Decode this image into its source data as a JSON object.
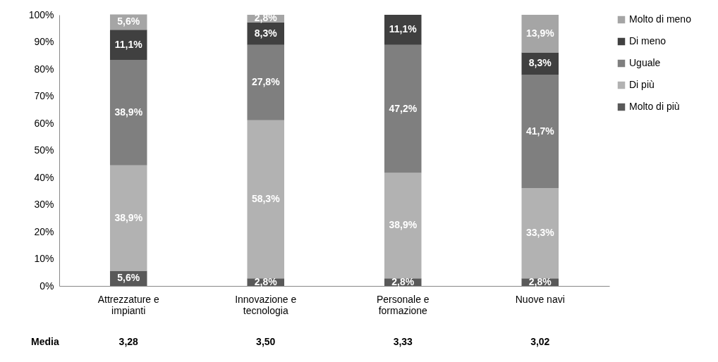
{
  "chart_data": {
    "type": "bar",
    "stacked": true,
    "categories": [
      "Attrezzature e impianti",
      "Innovazione e tecnologia",
      "Personale e formazione",
      "Nuove navi"
    ],
    "series": [
      {
        "name": "Molto di più",
        "color": "#595959",
        "values": [
          5.6,
          2.8,
          2.8,
          2.8
        ],
        "value_labels": [
          "5,6%",
          "2,8%",
          "2,8%",
          "2,8%"
        ]
      },
      {
        "name": "Di più",
        "color": "#b2b2b2",
        "values": [
          38.9,
          58.3,
          38.9,
          33.3
        ],
        "value_labels": [
          "38,9%",
          "58,3%",
          "38,9%",
          "33,3%"
        ]
      },
      {
        "name": "Uguale",
        "color": "#7f7f7f",
        "values": [
          38.9,
          27.8,
          47.2,
          41.7
        ],
        "value_labels": [
          "38,9%",
          "27,8%",
          "47,2%",
          "41,7%"
        ]
      },
      {
        "name": "Di meno",
        "color": "#404040",
        "values": [
          11.1,
          8.3,
          11.1,
          8.3
        ],
        "value_labels": [
          "11,1%",
          "8,3%",
          "11,1%",
          "8,3%"
        ]
      },
      {
        "name": "Molto di meno",
        "color": "#a5a5a5",
        "values": [
          5.6,
          2.8,
          null,
          13.9
        ],
        "value_labels": [
          "5,6%",
          "2,8%",
          null,
          "13,9%"
        ]
      }
    ],
    "ylim": [
      0,
      100
    ],
    "yticks": [
      {
        "value": 0,
        "label": "0%"
      },
      {
        "value": 10,
        "label": "10%"
      },
      {
        "value": 20,
        "label": "20%"
      },
      {
        "value": 30,
        "label": "30%"
      },
      {
        "value": 40,
        "label": "40%"
      },
      {
        "value": 50,
        "label": "50%"
      },
      {
        "value": 60,
        "label": "60%"
      },
      {
        "value": 70,
        "label": "70%"
      },
      {
        "value": 80,
        "label": "80%"
      },
      {
        "value": 90,
        "label": "90%"
      },
      {
        "value": 100,
        "label": "100%"
      }
    ],
    "grid": false,
    "legend": "right",
    "annotations": [
      "Media",
      "3,28",
      "3,50",
      "3,33",
      "3,02"
    ]
  }
}
